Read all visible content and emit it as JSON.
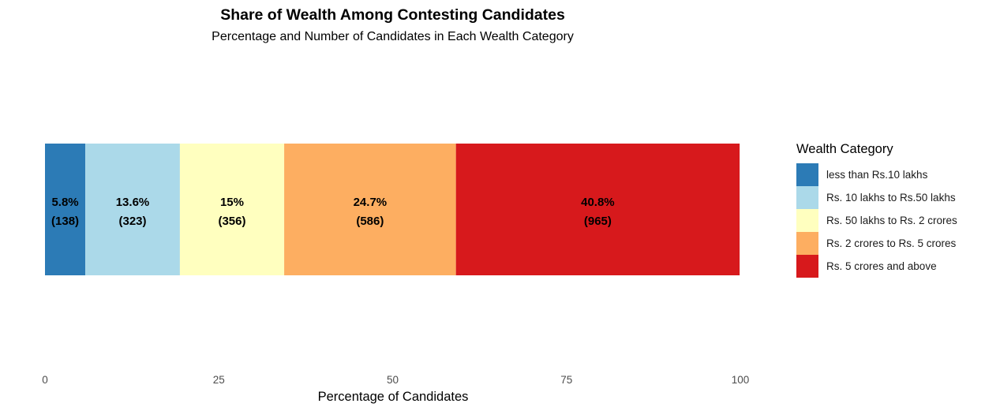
{
  "title": "Share of Wealth Among Contesting Candidates",
  "subtitle": "Percentage and Number of Candidates in Each Wealth Category",
  "legend": {
    "title": "Wealth Category",
    "items": [
      {
        "label": "less than Rs.10 lakhs",
        "color": "#2C7BB6"
      },
      {
        "label": "Rs. 10 lakhs to Rs.50 lakhs",
        "color": "#ABD9E9"
      },
      {
        "label": "Rs. 50 lakhs to Rs. 2 crores",
        "color": "#FFFFBF"
      },
      {
        "label": "Rs. 2 crores to Rs. 5 crores",
        "color": "#FDAE61"
      },
      {
        "label": "Rs. 5 crores and above",
        "color": "#D7191C"
      }
    ]
  },
  "chart_data": {
    "type": "bar",
    "orientation": "horizontal-stacked",
    "title": "Share of Wealth Among Contesting Candidates",
    "subtitle": "Percentage and Number of Candidates in Each Wealth Category",
    "xlabel": "Percentage of Candidates",
    "ylabel": "",
    "xlim": [
      0,
      100
    ],
    "x_ticks": [
      0,
      25,
      50,
      75,
      100
    ],
    "grid": false,
    "legend_position": "right",
    "segments": [
      {
        "name": "less than Rs.10 lakhs",
        "value": 5.8,
        "label": "5.8%",
        "count": "(138)",
        "color": "#2C7BB6"
      },
      {
        "name": "Rs. 10 lakhs to Rs.50 lakhs",
        "value": 13.6,
        "label": "13.6%",
        "count": "(323)",
        "color": "#ABD9E9"
      },
      {
        "name": "Rs. 50 lakhs to Rs. 2 crores",
        "value": 15,
        "label": "15%",
        "count": "(356)",
        "color": "#FFFFBF"
      },
      {
        "name": "Rs. 2 crores to Rs. 5 crores",
        "value": 24.7,
        "label": "24.7%",
        "count": "(586)",
        "color": "#FDAE61"
      },
      {
        "name": "Rs. 5 crores and above",
        "value": 40.8,
        "label": "40.8%",
        "count": "(965)",
        "color": "#D7191C"
      }
    ]
  }
}
